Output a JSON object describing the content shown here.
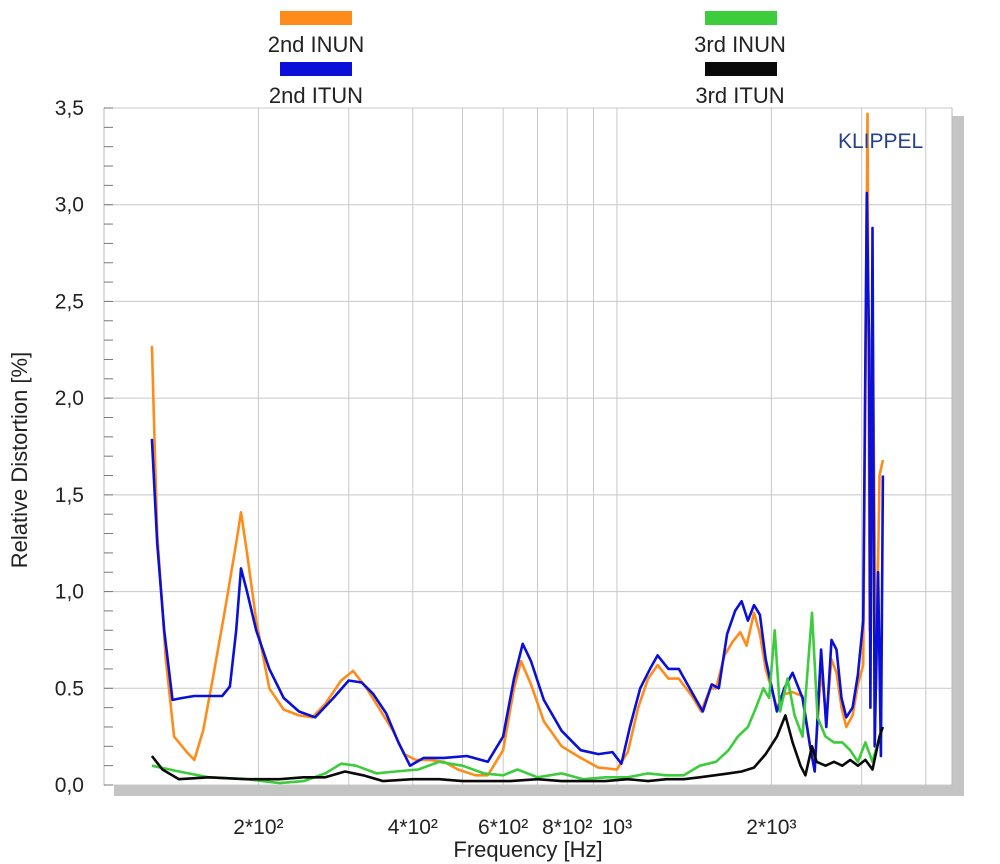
{
  "chart_data": {
    "type": "line",
    "x_scale": "log",
    "grid": true,
    "legend_position": "top",
    "xlabel": "Frequency  [Hz]",
    "ylabel": "Relative Distortion  [%]",
    "brand": "KLIPPEL",
    "xlim": [
      100,
      4500
    ],
    "ylim": [
      0,
      3.5
    ],
    "y_ticks": [
      "0,0",
      "0.5",
      "1,0",
      "1,5",
      "2,0",
      "2,5",
      "3,0",
      "3,5"
    ],
    "y_tick_values": [
      0,
      0.5,
      1.0,
      1.5,
      2.0,
      2.5,
      3.0,
      3.5
    ],
    "x_ticks": [
      {
        "value": 200,
        "label": "2*10²"
      },
      {
        "value": 400,
        "label": "4*10²"
      },
      {
        "value": 600,
        "label": "6*10²"
      },
      {
        "value": 800,
        "label": "8*10²"
      },
      {
        "value": 1000,
        "label": "10³"
      },
      {
        "value": 2000,
        "label": "2*10³"
      }
    ],
    "series": [
      {
        "name": "2nd INUN",
        "color": "#ff8c1a",
        "points": [
          [
            124,
            2.27
          ],
          [
            127,
            1.3
          ],
          [
            132,
            0.65
          ],
          [
            137,
            0.25
          ],
          [
            145,
            0.17
          ],
          [
            150,
            0.13
          ],
          [
            156,
            0.28
          ],
          [
            163,
            0.55
          ],
          [
            172,
            0.9
          ],
          [
            181,
            1.25
          ],
          [
            185,
            1.41
          ],
          [
            190,
            1.2
          ],
          [
            198,
            0.85
          ],
          [
            210,
            0.5
          ],
          [
            224,
            0.39
          ],
          [
            240,
            0.36
          ],
          [
            255,
            0.35
          ],
          [
            270,
            0.42
          ],
          [
            290,
            0.54
          ],
          [
            306,
            0.59
          ],
          [
            325,
            0.5
          ],
          [
            345,
            0.39
          ],
          [
            366,
            0.28
          ],
          [
            385,
            0.16
          ],
          [
            405,
            0.13
          ],
          [
            430,
            0.13
          ],
          [
            460,
            0.12
          ],
          [
            490,
            0.08
          ],
          [
            530,
            0.05
          ],
          [
            560,
            0.05
          ],
          [
            600,
            0.18
          ],
          [
            630,
            0.5
          ],
          [
            650,
            0.64
          ],
          [
            680,
            0.52
          ],
          [
            720,
            0.33
          ],
          [
            780,
            0.2
          ],
          [
            850,
            0.14
          ],
          [
            920,
            0.09
          ],
          [
            1000,
            0.08
          ],
          [
            1050,
            0.17
          ],
          [
            1100,
            0.4
          ],
          [
            1150,
            0.55
          ],
          [
            1200,
            0.62
          ],
          [
            1260,
            0.55
          ],
          [
            1320,
            0.55
          ],
          [
            1400,
            0.46
          ],
          [
            1460,
            0.38
          ],
          [
            1520,
            0.5
          ],
          [
            1560,
            0.5
          ],
          [
            1620,
            0.67
          ],
          [
            1680,
            0.74
          ],
          [
            1740,
            0.79
          ],
          [
            1790,
            0.72
          ],
          [
            1850,
            0.89
          ],
          [
            1900,
            0.78
          ],
          [
            1950,
            0.6
          ],
          [
            2050,
            0.4
          ],
          [
            2120,
            0.47
          ],
          [
            2200,
            0.48
          ],
          [
            2300,
            0.46
          ],
          [
            2380,
            0.2
          ],
          [
            2430,
            0.1
          ],
          [
            2500,
            0.6
          ],
          [
            2560,
            0.35
          ],
          [
            2620,
            0.65
          ],
          [
            2680,
            0.58
          ],
          [
            2740,
            0.4
          ],
          [
            2800,
            0.3
          ],
          [
            2880,
            0.36
          ],
          [
            2950,
            0.52
          ],
          [
            3020,
            0.62
          ],
          [
            3080,
            3.47
          ],
          [
            3110,
            0.8
          ],
          [
            3150,
            2.5
          ],
          [
            3200,
            0.5
          ],
          [
            3250,
            1.6
          ],
          [
            3300,
            1.68
          ]
        ]
      },
      {
        "name": "2nd ITUN",
        "color": "#0a10d8",
        "points": [
          [
            124,
            1.79
          ],
          [
            127,
            1.25
          ],
          [
            131,
            0.8
          ],
          [
            136,
            0.44
          ],
          [
            142,
            0.45
          ],
          [
            150,
            0.46
          ],
          [
            160,
            0.46
          ],
          [
            170,
            0.46
          ],
          [
            176,
            0.51
          ],
          [
            181,
            0.8
          ],
          [
            185,
            1.12
          ],
          [
            190,
            1.0
          ],
          [
            198,
            0.8
          ],
          [
            210,
            0.6
          ],
          [
            224,
            0.45
          ],
          [
            240,
            0.38
          ],
          [
            258,
            0.35
          ],
          [
            280,
            0.45
          ],
          [
            300,
            0.54
          ],
          [
            318,
            0.53
          ],
          [
            335,
            0.47
          ],
          [
            355,
            0.37
          ],
          [
            375,
            0.22
          ],
          [
            395,
            0.1
          ],
          [
            420,
            0.14
          ],
          [
            460,
            0.14
          ],
          [
            510,
            0.15
          ],
          [
            560,
            0.12
          ],
          [
            600,
            0.25
          ],
          [
            630,
            0.55
          ],
          [
            655,
            0.73
          ],
          [
            680,
            0.64
          ],
          [
            720,
            0.44
          ],
          [
            780,
            0.28
          ],
          [
            850,
            0.18
          ],
          [
            920,
            0.16
          ],
          [
            980,
            0.17
          ],
          [
            1020,
            0.11
          ],
          [
            1060,
            0.3
          ],
          [
            1110,
            0.5
          ],
          [
            1160,
            0.6
          ],
          [
            1200,
            0.67
          ],
          [
            1260,
            0.6
          ],
          [
            1320,
            0.6
          ],
          [
            1400,
            0.48
          ],
          [
            1470,
            0.38
          ],
          [
            1530,
            0.52
          ],
          [
            1580,
            0.5
          ],
          [
            1640,
            0.78
          ],
          [
            1700,
            0.9
          ],
          [
            1750,
            0.95
          ],
          [
            1800,
            0.85
          ],
          [
            1850,
            0.93
          ],
          [
            1900,
            0.88
          ],
          [
            1950,
            0.65
          ],
          [
            2050,
            0.38
          ],
          [
            2120,
            0.5
          ],
          [
            2200,
            0.58
          ],
          [
            2300,
            0.45
          ],
          [
            2380,
            0.2
          ],
          [
            2430,
            0.07
          ],
          [
            2500,
            0.7
          ],
          [
            2560,
            0.3
          ],
          [
            2620,
            0.75
          ],
          [
            2680,
            0.7
          ],
          [
            2740,
            0.45
          ],
          [
            2800,
            0.35
          ],
          [
            2880,
            0.4
          ],
          [
            2950,
            0.57
          ],
          [
            3020,
            0.85
          ],
          [
            3070,
            3.06
          ],
          [
            3100,
            2.3
          ],
          [
            3120,
            0.4
          ],
          [
            3150,
            2.88
          ],
          [
            3180,
            0.2
          ],
          [
            3230,
            1.1
          ],
          [
            3270,
            0.15
          ],
          [
            3300,
            1.6
          ]
        ]
      },
      {
        "name": "3rd INUN",
        "color": "#3ccc3c",
        "points": [
          [
            124,
            0.1
          ],
          [
            140,
            0.07
          ],
          [
            160,
            0.04
          ],
          [
            190,
            0.03
          ],
          [
            220,
            0.01
          ],
          [
            245,
            0.02
          ],
          [
            270,
            0.06
          ],
          [
            290,
            0.11
          ],
          [
            310,
            0.1
          ],
          [
            340,
            0.06
          ],
          [
            370,
            0.07
          ],
          [
            410,
            0.08
          ],
          [
            450,
            0.12
          ],
          [
            500,
            0.1
          ],
          [
            550,
            0.06
          ],
          [
            600,
            0.05
          ],
          [
            640,
            0.08
          ],
          [
            700,
            0.04
          ],
          [
            780,
            0.06
          ],
          [
            860,
            0.03
          ],
          [
            950,
            0.04
          ],
          [
            1050,
            0.04
          ],
          [
            1150,
            0.06
          ],
          [
            1250,
            0.05
          ],
          [
            1350,
            0.05
          ],
          [
            1450,
            0.1
          ],
          [
            1560,
            0.12
          ],
          [
            1650,
            0.18
          ],
          [
            1720,
            0.25
          ],
          [
            1800,
            0.3
          ],
          [
            1860,
            0.39
          ],
          [
            1930,
            0.5
          ],
          [
            1980,
            0.45
          ],
          [
            2030,
            0.8
          ],
          [
            2080,
            0.38
          ],
          [
            2150,
            0.55
          ],
          [
            2220,
            0.36
          ],
          [
            2300,
            0.25
          ],
          [
            2400,
            0.89
          ],
          [
            2460,
            0.35
          ],
          [
            2550,
            0.25
          ],
          [
            2650,
            0.22
          ],
          [
            2750,
            0.22
          ],
          [
            2850,
            0.18
          ],
          [
            2950,
            0.12
          ],
          [
            3050,
            0.22
          ],
          [
            3150,
            0.12
          ],
          [
            3250,
            0.25
          ]
        ]
      },
      {
        "name": "3rd ITUN",
        "color": "#0a0a0a",
        "points": [
          [
            124,
            0.15
          ],
          [
            130,
            0.08
          ],
          [
            140,
            0.03
          ],
          [
            160,
            0.04
          ],
          [
            190,
            0.03
          ],
          [
            220,
            0.03
          ],
          [
            245,
            0.04
          ],
          [
            270,
            0.04
          ],
          [
            295,
            0.07
          ],
          [
            320,
            0.05
          ],
          [
            350,
            0.02
          ],
          [
            400,
            0.03
          ],
          [
            450,
            0.03
          ],
          [
            500,
            0.02
          ],
          [
            560,
            0.02
          ],
          [
            620,
            0.02
          ],
          [
            700,
            0.03
          ],
          [
            780,
            0.02
          ],
          [
            860,
            0.02
          ],
          [
            950,
            0.02
          ],
          [
            1050,
            0.03
          ],
          [
            1150,
            0.02
          ],
          [
            1250,
            0.03
          ],
          [
            1350,
            0.03
          ],
          [
            1450,
            0.04
          ],
          [
            1550,
            0.05
          ],
          [
            1650,
            0.06
          ],
          [
            1750,
            0.07
          ],
          [
            1850,
            0.09
          ],
          [
            1950,
            0.16
          ],
          [
            2050,
            0.25
          ],
          [
            2130,
            0.36
          ],
          [
            2200,
            0.22
          ],
          [
            2280,
            0.1
          ],
          [
            2330,
            0.05
          ],
          [
            2400,
            0.2
          ],
          [
            2450,
            0.12
          ],
          [
            2550,
            0.1
          ],
          [
            2650,
            0.12
          ],
          [
            2750,
            0.1
          ],
          [
            2850,
            0.13
          ],
          [
            2950,
            0.1
          ],
          [
            3050,
            0.13
          ],
          [
            3150,
            0.08
          ],
          [
            3250,
            0.25
          ],
          [
            3300,
            0.3
          ]
        ]
      }
    ]
  }
}
